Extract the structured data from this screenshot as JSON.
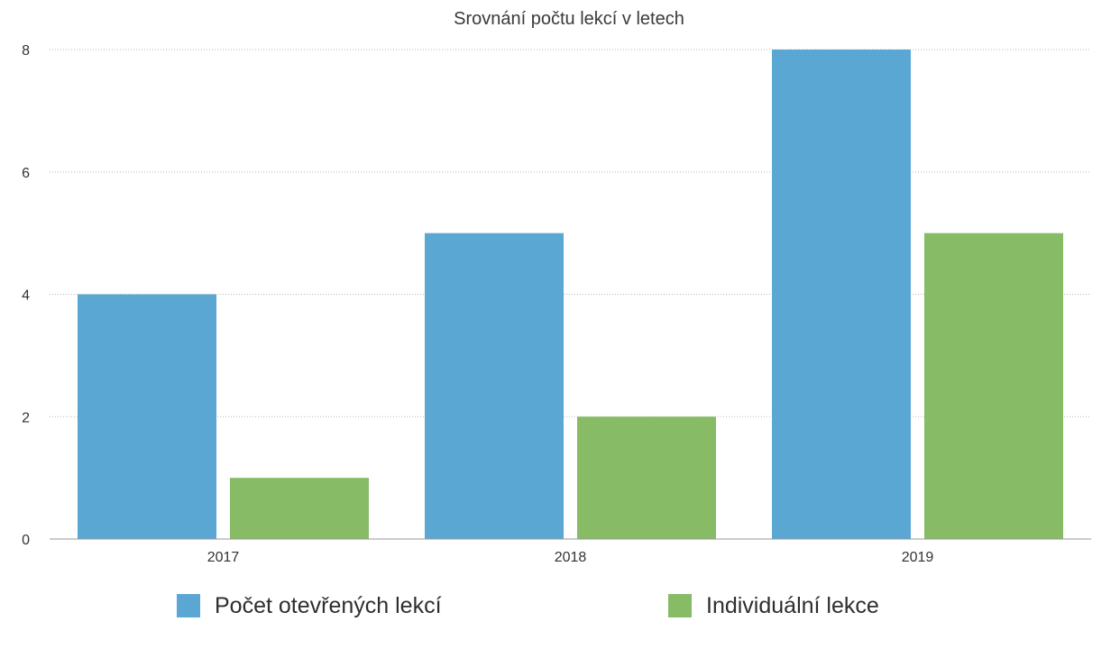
{
  "chart_data": {
    "type": "bar",
    "title": "Srovnání počtu lekcí v letech",
    "xlabel": "",
    "ylabel": "",
    "categories": [
      "2017",
      "2018",
      "2019"
    ],
    "series": [
      {
        "name": "Počet otevřených lekcí",
        "values": [
          4,
          5,
          8
        ],
        "color": "#5ba7d4"
      },
      {
        "name": "Individuální lekce",
        "values": [
          1,
          2,
          5
        ],
        "color": "#87bb66"
      }
    ],
    "ylim": [
      0,
      8
    ],
    "yticks": [
      "0",
      "2",
      "4",
      "6",
      "8"
    ],
    "grid": true,
    "legend_position": "bottom"
  }
}
